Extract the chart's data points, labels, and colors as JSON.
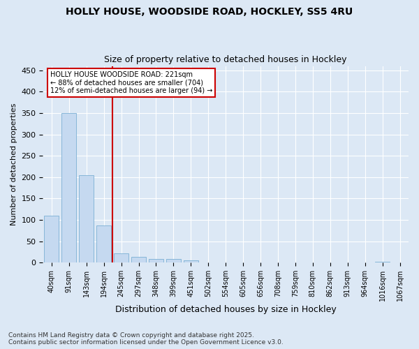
{
  "title_line1": "HOLLY HOUSE, WOODSIDE ROAD, HOCKLEY, SS5 4RU",
  "title_line2": "Size of property relative to detached houses in Hockley",
  "xlabel": "Distribution of detached houses by size in Hockley",
  "ylabel": "Number of detached properties",
  "categories": [
    "40sqm",
    "91sqm",
    "143sqm",
    "194sqm",
    "245sqm",
    "297sqm",
    "348sqm",
    "399sqm",
    "451sqm",
    "502sqm",
    "554sqm",
    "605sqm",
    "656sqm",
    "708sqm",
    "759sqm",
    "810sqm",
    "862sqm",
    "913sqm",
    "964sqm",
    "1016sqm",
    "1067sqm"
  ],
  "values": [
    110,
    350,
    205,
    87,
    22,
    14,
    8,
    8,
    5,
    0,
    0,
    0,
    0,
    0,
    0,
    0,
    0,
    0,
    0,
    3,
    0
  ],
  "bar_color": "#c5d9f0",
  "bar_edge_color": "#7bafd4",
  "vline_x": 3.5,
  "vline_color": "#cc0000",
  "annotation_text": "HOLLY HOUSE WOODSIDE ROAD: 221sqm\n← 88% of detached houses are smaller (704)\n12% of semi-detached houses are larger (94) →",
  "annotation_box_color": "#ffffff",
  "annotation_box_edge": "#cc0000",
  "ylim": [
    0,
    460
  ],
  "yticks": [
    0,
    50,
    100,
    150,
    200,
    250,
    300,
    350,
    400,
    450
  ],
  "footer_text": "Contains HM Land Registry data © Crown copyright and database right 2025.\nContains public sector information licensed under the Open Government Licence v3.0.",
  "bg_color": "#dce8f5",
  "plot_bg_color": "#dce8f5",
  "grid_color": "#ffffff"
}
